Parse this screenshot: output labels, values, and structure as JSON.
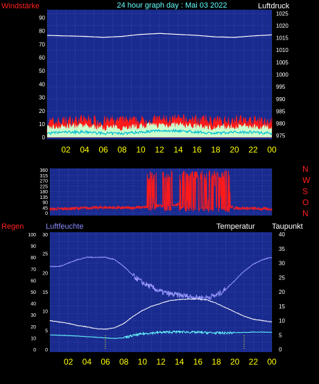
{
  "header": {
    "left": "Windstärke",
    "center": "24 hour graph day : Mai 03 2022",
    "right": "Luftdruck"
  },
  "colors": {
    "plot_bg": "#1a2b8f",
    "grid": "#4a5ec0",
    "wind": "#ff1a1a",
    "gust_fill": "#ccffcc",
    "wind_avg": "#00bcd4",
    "pressure": "#ffffff",
    "direction": "#ff1a1a",
    "humidity": "#9a9aff",
    "temperature": "#ffffff",
    "dewpoint": "#66ffff",
    "rain": "#ffff00",
    "red_label": "#ff2020",
    "cyan_label": "#66ffff",
    "blue_label": "#8a8aff",
    "tick_text": "#ffff00",
    "axis_text": "#ffffff"
  },
  "chart_data": [
    {
      "type": "line",
      "name": "wind-pressure",
      "x_ticks": [
        "02",
        "04",
        "06",
        "08",
        "10",
        "12",
        "14",
        "16",
        "18",
        "20",
        "22",
        "00"
      ],
      "left_axis": {
        "label": "Windstärke",
        "ticks": [
          0,
          10,
          20,
          30,
          40,
          50,
          60,
          70,
          80,
          90
        ]
      },
      "right_axis": {
        "label": "Luftdruck",
        "ticks": [
          975,
          980,
          985,
          990,
          995,
          1000,
          1005,
          1010,
          1015,
          1020,
          1025
        ]
      },
      "series": [
        {
          "x": [
            0,
            2,
            4,
            6,
            8,
            10,
            12,
            14,
            16,
            18,
            20,
            22,
            24
          ],
          "values": [
            9,
            10,
            11,
            10,
            10,
            10,
            11,
            11,
            11,
            10,
            11,
            10,
            9
          ]
        },
        {
          "x": [
            0,
            2,
            4,
            6,
            8,
            10,
            12,
            14,
            16,
            18,
            20,
            22,
            24
          ],
          "values": [
            3,
            4,
            4,
            3,
            3,
            4,
            5,
            5,
            4,
            3,
            4,
            4,
            3
          ]
        },
        {
          "x": [
            0,
            2,
            4,
            6,
            8,
            10,
            12,
            14,
            16,
            18,
            20,
            22,
            24
          ],
          "values": [
            1016,
            1015.8,
            1015.6,
            1015.2,
            1015.6,
            1016.4,
            1016.8,
            1016.4,
            1016,
            1015.4,
            1015.2,
            1015.8,
            1016.2
          ]
        }
      ]
    },
    {
      "type": "line",
      "name": "wind-direction",
      "x_ticks": [
        "02",
        "04",
        "06",
        "08",
        "10",
        "12",
        "14",
        "16",
        "18",
        "20",
        "22",
        "00"
      ],
      "left_axis": {
        "ticks": [
          0,
          45,
          90,
          135,
          180,
          225,
          270,
          315,
          360
        ]
      },
      "right_axis": {
        "ticks": [
          "N",
          "W",
          "S",
          "O",
          "N"
        ]
      },
      "direction_profile": {
        "x": [
          0,
          2,
          4,
          6,
          8,
          10,
          11,
          12,
          14,
          16,
          18,
          19,
          20,
          22,
          24
        ],
        "values": [
          30,
          35,
          40,
          45,
          40,
          45,
          50,
          60,
          70,
          80,
          90,
          60,
          40,
          35,
          30
        ]
      },
      "chaotic_range": [
        [
          10.5,
          11.5
        ],
        [
          12.2,
          13.2
        ],
        [
          14.0,
          19.5
        ]
      ]
    },
    {
      "type": "line",
      "name": "humidity-temperature",
      "x_ticks": [
        "02",
        "04",
        "06",
        "08",
        "10",
        "12",
        "14",
        "16",
        "18",
        "20",
        "22",
        "00"
      ],
      "left_axis_regen": {
        "label": "Regen",
        "ticks": [
          0,
          10,
          20,
          30,
          40,
          50,
          60,
          70,
          80,
          90,
          100
        ]
      },
      "left_axis_humidity": {
        "label": "Luftfeuchte",
        "ticks": [
          0,
          5,
          10,
          15,
          20,
          25,
          30
        ]
      },
      "right_axis": {
        "label_temp": "Temperatur",
        "label_dew": "Taupunkt",
        "ticks": [
          0,
          5,
          10,
          15,
          20,
          25,
          30,
          35,
          40
        ]
      },
      "series": [
        {
          "x": [
            0,
            1,
            2,
            3,
            4,
            5,
            6,
            7,
            8,
            9,
            10,
            11,
            12,
            13,
            14,
            15,
            16,
            17,
            18,
            19,
            20,
            21,
            22,
            23,
            24
          ],
          "values": [
            72,
            72,
            75,
            78,
            80,
            80,
            80,
            78,
            72,
            64,
            58,
            54,
            50,
            48,
            47,
            46,
            45,
            45,
            47,
            52,
            60,
            68,
            74,
            78,
            80
          ]
        },
        {
          "x": [
            0,
            1,
            2,
            3,
            4,
            5,
            6,
            7,
            8,
            9,
            10,
            11,
            12,
            13,
            14,
            15,
            16,
            17,
            18,
            19,
            20,
            21,
            22,
            23,
            24
          ],
          "values": [
            10,
            9.5,
            9,
            8.3,
            7.8,
            7.2,
            7,
            7.5,
            9,
            11.5,
            13.5,
            15,
            16,
            17,
            17.3,
            17.5,
            17.5,
            17.2,
            16,
            14.5,
            13,
            11.5,
            10.5,
            10,
            9.5
          ]
        },
        {
          "x": [
            0,
            1,
            2,
            3,
            4,
            5,
            6,
            7,
            8,
            9,
            10,
            11,
            12,
            13,
            14,
            15,
            16,
            17,
            18,
            19,
            20,
            21,
            22,
            23,
            24
          ],
          "values": [
            5,
            4.9,
            4.8,
            4.6,
            4.4,
            4.2,
            4,
            3.8,
            4,
            4.8,
            5.4,
            5.7,
            5.9,
            6,
            6.1,
            6,
            5.9,
            5.8,
            5.7,
            5.7,
            5.8,
            5.9,
            6,
            6,
            5.9
          ]
        }
      ],
      "rain_markers_x": [
        6,
        21
      ]
    }
  ]
}
